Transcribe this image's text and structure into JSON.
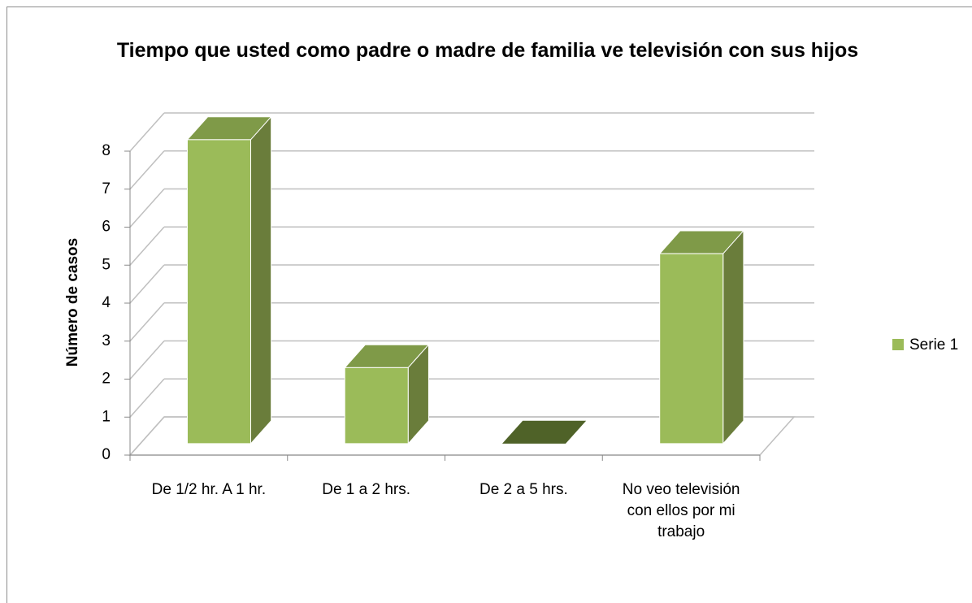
{
  "chart_data": {
    "type": "bar3d",
    "title": "Tiempo que usted como padre o madre de familia ve televisión con sus hijos",
    "y_label": "Número  de casos",
    "categories": [
      "De  1/2 hr. A 1 hr.",
      "De 1  a 2 hrs.",
      "De 2 a 5 hrs.",
      "No veo televisión con ellos por mi trabajo"
    ],
    "series": [
      {
        "name": "Serie 1",
        "color": "#9bbb59",
        "values": [
          8,
          2,
          0,
          5
        ]
      }
    ],
    "ylim": [
      0,
      8
    ],
    "yticks": [
      0,
      1,
      2,
      3,
      4,
      5,
      6,
      7,
      8
    ],
    "grid": true,
    "legend": "right"
  }
}
